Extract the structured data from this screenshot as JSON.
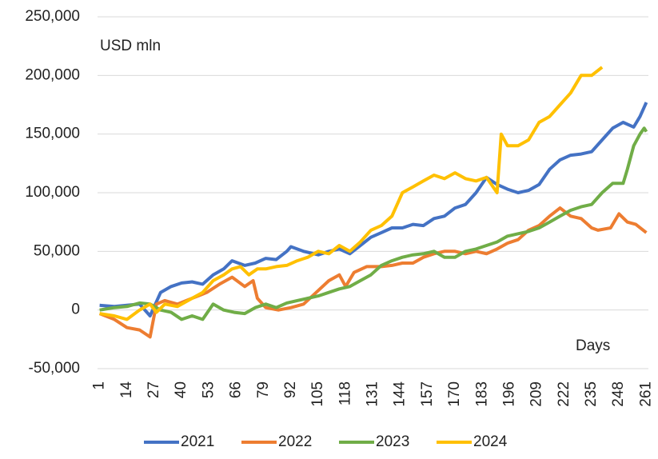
{
  "chart_data": {
    "type": "line",
    "annotations": [
      "USD mln",
      "Days"
    ],
    "xlim": [
      0,
      262
    ],
    "xticks": [
      1,
      14,
      27,
      40,
      53,
      66,
      79,
      92,
      105,
      118,
      131,
      144,
      157,
      170,
      183,
      196,
      209,
      222,
      235,
      248,
      261
    ],
    "ylim": [
      -50000,
      250000
    ],
    "yticks": [
      {
        "value": -50000,
        "label": "-50,000"
      },
      0,
      {
        "value": 50000,
        "label": "50,000"
      },
      {
        "value": 100000,
        "label": "100,000"
      },
      {
        "value": 150000,
        "label": "150,000"
      },
      {
        "value": 200000,
        "label": "200,000"
      },
      {
        "value": 250000,
        "label": "250,000"
      }
    ],
    "grid": true,
    "legend": "bottom",
    "series": [
      {
        "name": "2021",
        "color": "#4472c4",
        "x": [
          1,
          8,
          14,
          20,
          25,
          30,
          35,
          40,
          45,
          50,
          55,
          60,
          64,
          70,
          75,
          80,
          85,
          90,
          92,
          98,
          105,
          110,
          115,
          120,
          125,
          130,
          135,
          140,
          145,
          150,
          155,
          160,
          165,
          170,
          175,
          180,
          185,
          190,
          195,
          200,
          205,
          210,
          215,
          220,
          225,
          230,
          235,
          240,
          245,
          250,
          255,
          258,
          261
        ],
        "values": [
          4000,
          3000,
          4000,
          5000,
          -5000,
          15000,
          20000,
          23000,
          24000,
          22000,
          30000,
          35000,
          42000,
          38000,
          40000,
          44000,
          43000,
          50000,
          54000,
          50000,
          47000,
          50000,
          52000,
          48000,
          55000,
          62000,
          66000,
          70000,
          70000,
          73000,
          72000,
          78000,
          80000,
          87000,
          90000,
          100000,
          113000,
          107000,
          103000,
          100000,
          102000,
          107000,
          120000,
          128000,
          132000,
          133000,
          135000,
          145000,
          155000,
          160000,
          156000,
          165000,
          177000
        ]
      },
      {
        "name": "2022",
        "color": "#ed7d31",
        "x": [
          1,
          8,
          14,
          20,
          25,
          28,
          32,
          38,
          45,
          52,
          58,
          64,
          70,
          74,
          76,
          80,
          86,
          92,
          98,
          104,
          110,
          115,
          118,
          122,
          128,
          135,
          140,
          145,
          150,
          155,
          160,
          165,
          170,
          175,
          180,
          185,
          190,
          195,
          200,
          205,
          210,
          215,
          220,
          225,
          230,
          235,
          238,
          244,
          248,
          252,
          256,
          261
        ],
        "values": [
          -3000,
          -8000,
          -15000,
          -17000,
          -23000,
          5000,
          8000,
          5000,
          10000,
          15000,
          22000,
          28000,
          20000,
          25000,
          10000,
          2000,
          0,
          2000,
          5000,
          15000,
          25000,
          30000,
          20000,
          32000,
          37000,
          37000,
          38000,
          40000,
          40000,
          45000,
          48000,
          50000,
          50000,
          48000,
          50000,
          48000,
          52000,
          57000,
          60000,
          68000,
          72000,
          80000,
          87000,
          80000,
          78000,
          70000,
          68000,
          70000,
          82000,
          75000,
          73000,
          66000
        ]
      },
      {
        "name": "2023",
        "color": "#70ad47",
        "x": [
          1,
          8,
          14,
          20,
          25,
          30,
          35,
          40,
          45,
          50,
          55,
          60,
          65,
          70,
          75,
          80,
          85,
          90,
          95,
          100,
          105,
          110,
          115,
          120,
          125,
          130,
          135,
          140,
          145,
          150,
          155,
          160,
          165,
          170,
          175,
          180,
          185,
          190,
          195,
          200,
          205,
          210,
          215,
          220,
          225,
          230,
          235,
          240,
          245,
          250,
          252,
          255,
          258,
          260,
          261
        ],
        "values": [
          0,
          2000,
          3000,
          6000,
          5000,
          0,
          -2000,
          -8000,
          -5000,
          -8000,
          5000,
          0,
          -2000,
          -3000,
          2000,
          5000,
          2000,
          6000,
          8000,
          10000,
          12000,
          15000,
          18000,
          20000,
          25000,
          30000,
          38000,
          42000,
          45000,
          47000,
          48000,
          50000,
          45000,
          45000,
          50000,
          52000,
          55000,
          58000,
          63000,
          65000,
          67000,
          70000,
          75000,
          80000,
          85000,
          88000,
          90000,
          100000,
          108000,
          108000,
          120000,
          140000,
          150000,
          155000,
          152000
        ]
      },
      {
        "name": "2024",
        "color": "#ffc000",
        "x": [
          1,
          8,
          14,
          20,
          25,
          28,
          32,
          38,
          45,
          50,
          55,
          60,
          64,
          68,
          72,
          76,
          80,
          85,
          90,
          95,
          100,
          105,
          110,
          115,
          120,
          125,
          130,
          135,
          140,
          145,
          150,
          155,
          160,
          165,
          170,
          175,
          180,
          185,
          190,
          192,
          195,
          200,
          205,
          210,
          215,
          220,
          225,
          230,
          235,
          240
        ],
        "values": [
          -3000,
          -5000,
          -8000,
          0,
          5000,
          -2000,
          5000,
          3000,
          10000,
          15000,
          25000,
          30000,
          35000,
          37000,
          30000,
          35000,
          35000,
          37000,
          38000,
          42000,
          45000,
          50000,
          48000,
          55000,
          50000,
          58000,
          68000,
          72000,
          80000,
          100000,
          105000,
          110000,
          115000,
          112000,
          117000,
          112000,
          110000,
          113000,
          100000,
          150000,
          140000,
          140000,
          145000,
          160000,
          165000,
          175000,
          185000,
          200000,
          200000,
          207000
        ]
      }
    ]
  }
}
